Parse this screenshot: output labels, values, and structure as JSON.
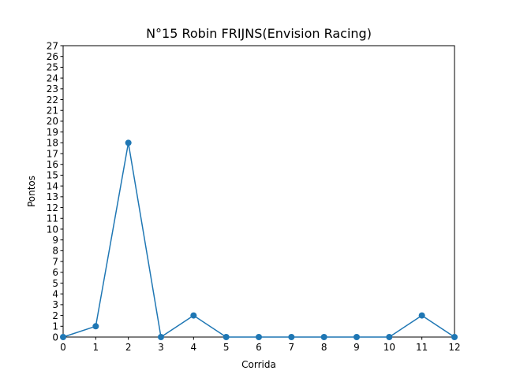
{
  "chart_data": {
    "type": "line",
    "title": "N°15 Robin FRIJNS(Envision Racing)",
    "xlabel": "Corrida",
    "ylabel": "Pontos",
    "x": [
      0,
      1,
      2,
      3,
      4,
      5,
      6,
      7,
      8,
      9,
      10,
      11,
      12
    ],
    "series": [
      {
        "values": [
          0,
          1,
          18,
          0,
          2,
          0,
          0,
          0,
          0,
          0,
          0,
          2,
          0
        ],
        "color": "#1f77b4"
      }
    ],
    "xlim": [
      0,
      12
    ],
    "ylim": [
      0,
      27
    ],
    "xticks": [
      0,
      1,
      2,
      3,
      4,
      5,
      6,
      7,
      8,
      9,
      10,
      11,
      12
    ],
    "yticks": [
      0,
      1,
      2,
      3,
      4,
      5,
      6,
      7,
      8,
      9,
      10,
      11,
      12,
      13,
      14,
      15,
      16,
      17,
      18,
      19,
      20,
      21,
      22,
      23,
      24,
      25,
      26,
      27
    ],
    "grid": false,
    "legend": false
  }
}
